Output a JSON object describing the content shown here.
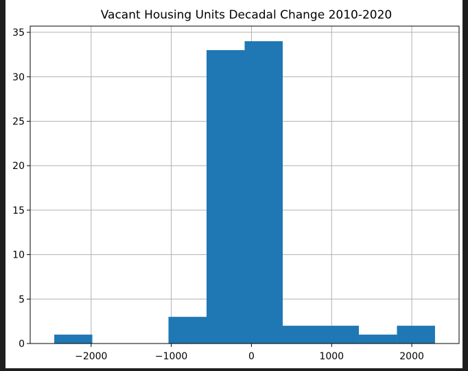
{
  "chart_data": {
    "type": "bar",
    "title": "Vacant Housing Units Decadal Change 2010-2020",
    "xlabel": "",
    "ylabel": "",
    "bins": [
      {
        "x0": -2460,
        "x1": -1985,
        "count": 1
      },
      {
        "x0": -1985,
        "x1": -1510,
        "count": 0
      },
      {
        "x0": -1510,
        "x1": -1035,
        "count": 0
      },
      {
        "x0": -1035,
        "x1": -560,
        "count": 3
      },
      {
        "x0": -560,
        "x1": -85,
        "count": 33
      },
      {
        "x0": -85,
        "x1": 390,
        "count": 34
      },
      {
        "x0": 390,
        "x1": 865,
        "count": 2
      },
      {
        "x0": 865,
        "x1": 1340,
        "count": 2
      },
      {
        "x0": 1340,
        "x1": 1815,
        "count": 1
      },
      {
        "x0": 1815,
        "x1": 2290,
        "count": 2
      }
    ],
    "xlim": [
      -2760,
      2590
    ],
    "ylim": [
      0,
      35.7
    ],
    "xticks": [
      -2000,
      -1000,
      0,
      1000,
      2000
    ],
    "xtick_labels": [
      "−2000",
      "−1000",
      "0",
      "1000",
      "2000"
    ],
    "yticks": [
      0,
      5,
      10,
      15,
      20,
      25,
      30,
      35
    ],
    "ytick_labels": [
      "0",
      "5",
      "10",
      "15",
      "20",
      "25",
      "30",
      "35"
    ],
    "grid": true,
    "colors": {
      "bar": "#1f77b4",
      "grid": "#b0b0b0",
      "axis": "#000000"
    }
  }
}
